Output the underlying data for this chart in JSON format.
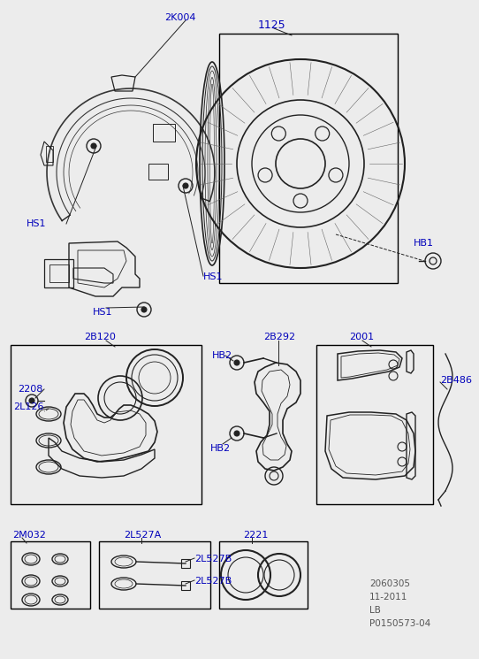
{
  "bg_color": "#ececec",
  "label_color": "#0000bb",
  "line_color": "#222222",
  "footer_lines": [
    "2060305",
    "11-2011",
    "LB",
    "P0150573-04"
  ],
  "footer_color": "#555555",
  "figsize": [
    5.42,
    7.45
  ],
  "dpi": 100
}
